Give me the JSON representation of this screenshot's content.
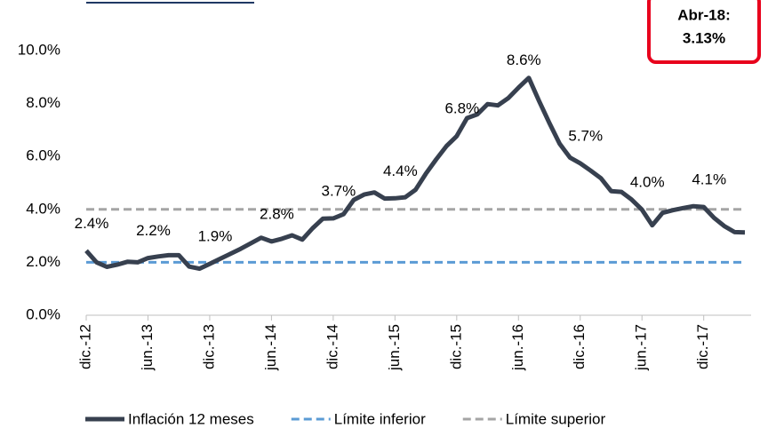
{
  "chart_data": {
    "type": "line",
    "categories": [
      "dic.-12",
      null,
      null,
      null,
      null,
      null,
      "jun.-13",
      null,
      null,
      null,
      null,
      null,
      "dic.-13",
      null,
      null,
      null,
      null,
      null,
      "jun.-14",
      null,
      null,
      null,
      null,
      null,
      "dic.-14",
      null,
      null,
      null,
      null,
      null,
      "jun.-15",
      null,
      null,
      null,
      null,
      null,
      "dic.-15",
      null,
      null,
      null,
      null,
      null,
      "jun.-16",
      null,
      null,
      null,
      null,
      null,
      "dic.-16",
      null,
      null,
      null,
      null,
      null,
      "jun.-17",
      null,
      null,
      null,
      null,
      null,
      "dic.-17",
      null,
      null,
      null,
      null
    ],
    "series": [
      {
        "name": "Inflación 12 meses",
        "color": "#37404f",
        "style": "solid",
        "values": [
          2.44,
          2.0,
          1.83,
          1.91,
          2.02,
          2.0,
          2.16,
          2.22,
          2.27,
          2.27,
          1.84,
          1.76,
          1.94,
          2.13,
          2.32,
          2.51,
          2.72,
          2.93,
          2.79,
          2.89,
          3.02,
          2.86,
          3.29,
          3.65,
          3.66,
          3.82,
          4.36,
          4.56,
          4.64,
          4.41,
          4.42,
          4.46,
          4.74,
          5.35,
          5.89,
          6.39,
          6.77,
          7.45,
          7.59,
          7.98,
          7.93,
          8.2,
          8.6,
          8.97,
          8.1,
          7.27,
          6.48,
          5.96,
          5.74,
          5.47,
          5.18,
          4.69,
          4.66,
          4.37,
          3.99,
          3.4,
          3.87,
          3.97,
          4.05,
          4.12,
          4.09,
          3.68,
          3.37,
          3.14,
          3.13
        ],
        "value_labels": [
          "2.4%",
          null,
          null,
          null,
          null,
          null,
          "2.2%",
          null,
          null,
          null,
          null,
          null,
          "1.9%",
          null,
          null,
          null,
          null,
          null,
          "2.8%",
          null,
          null,
          null,
          null,
          null,
          "3.7%",
          null,
          null,
          null,
          null,
          null,
          "4.4%",
          null,
          null,
          null,
          null,
          null,
          "6.8%",
          null,
          null,
          null,
          null,
          null,
          "8.6%",
          null,
          null,
          null,
          null,
          null,
          "5.7%",
          null,
          null,
          null,
          null,
          null,
          "4.0%",
          null,
          null,
          null,
          null,
          null,
          "4.1%",
          null,
          null,
          null,
          null
        ]
      },
      {
        "name": "Límite inferior",
        "color": "#5b9bd5",
        "style": "dashed",
        "values": [
          2,
          2,
          2,
          2,
          2,
          2,
          2,
          2,
          2,
          2,
          2,
          2,
          2,
          2,
          2,
          2,
          2,
          2,
          2,
          2,
          2,
          2,
          2,
          2,
          2,
          2,
          2,
          2,
          2,
          2,
          2,
          2,
          2,
          2,
          2,
          2,
          2,
          2,
          2,
          2,
          2,
          2,
          2,
          2,
          2,
          2,
          2,
          2,
          2,
          2,
          2,
          2,
          2,
          2,
          2,
          2,
          2,
          2,
          2,
          2,
          2,
          2,
          2,
          2,
          2
        ]
      },
      {
        "name": "Límite superior",
        "color": "#a5a5a5",
        "style": "dashed",
        "values": [
          4,
          4,
          4,
          4,
          4,
          4,
          4,
          4,
          4,
          4,
          4,
          4,
          4,
          4,
          4,
          4,
          4,
          4,
          4,
          4,
          4,
          4,
          4,
          4,
          4,
          4,
          4,
          4,
          4,
          4,
          4,
          4,
          4,
          4,
          4,
          4,
          4,
          4,
          4,
          4,
          4,
          4,
          4,
          4,
          4,
          4,
          4,
          4,
          4,
          4,
          4,
          4,
          4,
          4,
          4,
          4,
          4,
          4,
          4,
          4,
          4,
          4,
          4,
          4,
          4
        ]
      }
    ],
    "ylim": [
      0,
      10
    ],
    "yticks": [
      {
        "value": 0,
        "label": "0.0%"
      },
      {
        "value": 2,
        "label": "2.0%"
      },
      {
        "value": 4,
        "label": "4.0%"
      },
      {
        "value": 6,
        "label": "6.0%"
      },
      {
        "value": 8,
        "label": "8.0%"
      },
      {
        "value": 10,
        "label": "10.0%"
      }
    ],
    "annotation": [
      "Abr-18:",
      "3.13%"
    ],
    "legend": "bottom"
  }
}
